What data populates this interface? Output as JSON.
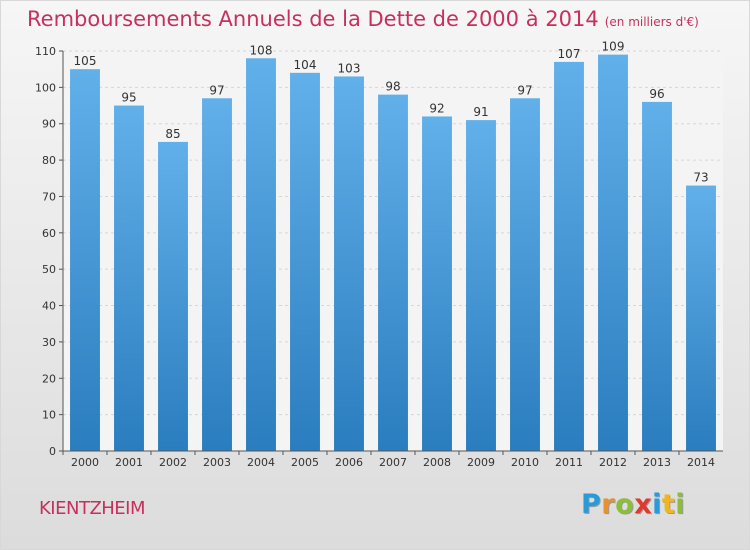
{
  "title": "Remboursements Annuels de la Dette de 2000 à 2014",
  "unit": "(en milliers d'€)",
  "commune": "KIENTZHEIM",
  "logo": {
    "letters": [
      "P",
      "r",
      "o",
      "x",
      "i",
      "t",
      "i"
    ],
    "colors": [
      "#2a9bd8",
      "#e8912d",
      "#8bbf3a",
      "#e03a2e",
      "#2a9bd8",
      "#f2b51d",
      "#8bbf3a"
    ]
  },
  "colors": {
    "title": "#c7305c",
    "bar_top": "#62b0ea",
    "bar_bottom": "#2a7dbe",
    "grid": "#d6d6d6"
  },
  "chart_data": {
    "type": "bar",
    "title": "Remboursements Annuels de la Dette de 2000 à 2014",
    "xlabel": "",
    "ylabel": "",
    "ylim": [
      0,
      110
    ],
    "yticks": [
      0,
      10,
      20,
      30,
      40,
      50,
      60,
      70,
      80,
      90,
      100,
      110
    ],
    "grid": true,
    "categories": [
      "2000",
      "2001",
      "2002",
      "2003",
      "2004",
      "2005",
      "2006",
      "2007",
      "2008",
      "2009",
      "2010",
      "2011",
      "2012",
      "2013",
      "2014"
    ],
    "values": [
      105,
      95,
      85,
      97,
      108,
      104,
      103,
      98,
      92,
      91,
      97,
      107,
      109,
      96,
      73
    ]
  }
}
